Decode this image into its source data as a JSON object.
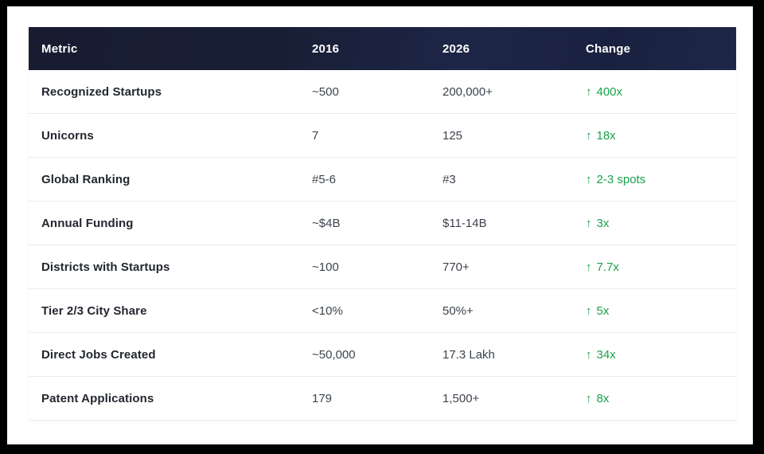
{
  "colors": {
    "frame": "#000000",
    "page_bg": "#ffffff",
    "header_bg": "#1a2138",
    "header_text": "#ffffff",
    "metric_text": "#23272f",
    "value_text": "#3d434d",
    "change_green": "#18a24a",
    "divider": "#e9ebee"
  },
  "table": {
    "columns": [
      {
        "label": "Metric"
      },
      {
        "label": "2016"
      },
      {
        "label": "2026"
      },
      {
        "label": "Change"
      }
    ],
    "rows": [
      {
        "metric": "Recognized Startups",
        "y2016": "~500",
        "y2026": "200,000+",
        "arrow": "↑",
        "change": "400x"
      },
      {
        "metric": "Unicorns",
        "y2016": "7",
        "y2026": "125",
        "arrow": "↑",
        "change": "18x"
      },
      {
        "metric": "Global Ranking",
        "y2016": "#5-6",
        "y2026": "#3",
        "arrow": "↑",
        "change": "2-3 spots"
      },
      {
        "metric": "Annual Funding",
        "y2016": "~$4B",
        "y2026": "$11-14B",
        "arrow": "↑",
        "change": "3x"
      },
      {
        "metric": "Districts with Startups",
        "y2016": "~100",
        "y2026": "770+",
        "arrow": "↑",
        "change": "7.7x"
      },
      {
        "metric": "Tier 2/3 City Share",
        "y2016": "<10%",
        "y2026": "50%+",
        "arrow": "↑",
        "change": "5x"
      },
      {
        "metric": "Direct Jobs Created",
        "y2016": "~50,000",
        "y2026": "17.3 Lakh",
        "arrow": "↑",
        "change": "34x"
      },
      {
        "metric": "Patent Applications",
        "y2016": "179",
        "y2026": "1,500+",
        "arrow": "↑",
        "change": "8x"
      }
    ]
  },
  "chart_data": {
    "type": "table",
    "title": "",
    "columns": [
      "Metric",
      "2016",
      "2026",
      "Change"
    ],
    "rows": [
      [
        "Recognized Startups",
        "~500",
        "200,000+",
        "↑ 400x"
      ],
      [
        "Unicorns",
        "7",
        "125",
        "↑ 18x"
      ],
      [
        "Global Ranking",
        "#5-6",
        "#3",
        "↑ 2-3 spots"
      ],
      [
        "Annual Funding",
        "~$4B",
        "$11-14B",
        "↑ 3x"
      ],
      [
        "Districts with Startups",
        "~100",
        "770+",
        "↑ 7.7x"
      ],
      [
        "Tier 2/3 City Share",
        "<10%",
        "50%+",
        "↑ 5x"
      ],
      [
        "Direct Jobs Created",
        "~50,000",
        "17.3 Lakh",
        "↑ 34x"
      ],
      [
        "Patent Applications",
        "179",
        "1,500+",
        "↑ 8x"
      ]
    ],
    "layout_hints": {
      "header_style": "dark-navy",
      "change_column_color": "green",
      "row_dividers": true
    }
  }
}
